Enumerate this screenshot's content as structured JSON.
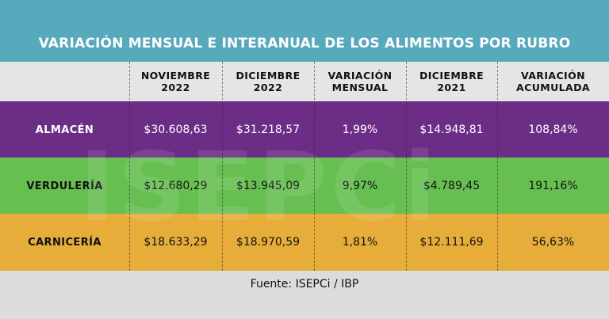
{
  "title": "VARIACIÓN MENSUAL E INTERANUAL DE LOS ALIMENTOS POR RUBRO",
  "source": "Fuente: ISEPCi / IBP",
  "watermark": "ISEPCi",
  "colors": {
    "title_bar": "#57a9bc",
    "header_row": "#e5e5e5",
    "almacen": "#6b2d86",
    "verduleria": "#67bf52",
    "carniceria": "#e6ad3a",
    "footer": "#dcdcdc"
  },
  "chart_data": {
    "type": "table",
    "title": "VARIACIÓN MENSUAL E INTERANUAL DE LOS ALIMENTOS POR RUBRO",
    "columns": [
      "",
      "NOVIEMBRE 2022",
      "DICIEMBRE 2022",
      "VARIACIÓN MENSUAL",
      "DICIEMBRE 2021",
      "VARIACIÓN ACUMULADA"
    ],
    "header": [
      {
        "line1": "NOVIEMBRE",
        "line2": "2022"
      },
      {
        "line1": "DICIEMBRE",
        "line2": "2022"
      },
      {
        "line1": "VARIACIÓN",
        "line2": "MENSUAL"
      },
      {
        "line1": "DICIEMBRE",
        "line2": "2021"
      },
      {
        "line1": "VARIACIÓN",
        "line2": "ACUMULADA"
      }
    ],
    "rows": [
      {
        "label": "ALMACÉN",
        "values": [
          "$30.608,63",
          "$31.218,57",
          "1,99%",
          "$14.948,81",
          "108,84%"
        ]
      },
      {
        "label": "VERDULERÍA",
        "values": [
          "$12.680,29",
          "$13.945,09",
          "9,97%",
          "$4.789,45",
          "191,16%"
        ]
      },
      {
        "label": "CARNICERÍA",
        "values": [
          "$18.633,29",
          "$18.970,59",
          "1,81%",
          "$12.111,69",
          "56,63%"
        ]
      }
    ]
  }
}
